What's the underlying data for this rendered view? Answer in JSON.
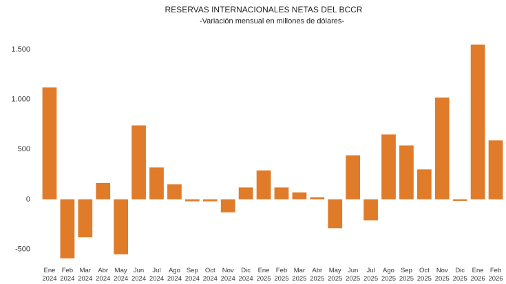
{
  "chart_data": {
    "type": "bar",
    "title": "RESERVAS INTERNACIONALES NETAS DEL BCCR",
    "subtitle": "-Variación mensual en millones de dólares-",
    "categories": [
      "Ene 2024",
      "Feb 2024",
      "Mar 2024",
      "Abr 2024",
      "May 2024",
      "Jun 2024",
      "Jul 2024",
      "Ago 2024",
      "Sep 2024",
      "Oct 2024",
      "Nov 2024",
      "Dic 2024",
      "Ene 2025",
      "Feb 2025",
      "Mar 2025",
      "Abr 2025",
      "May 2025",
      "Jun 2025",
      "Jul 2025",
      "Ago 2025",
      "Sep 2025",
      "Oct 2025",
      "Nov 2025",
      "Dic 2025",
      "Ene 2026",
      "Feb 2026"
    ],
    "values": [
      1120,
      -590,
      -380,
      165,
      -550,
      740,
      320,
      150,
      -20,
      -20,
      -130,
      120,
      290,
      120,
      70,
      20,
      -290,
      440,
      -210,
      650,
      540,
      300,
      1020,
      -15,
      1550,
      590
    ],
    "color": "#e07b2a",
    "ylim": [
      -620,
      1620
    ],
    "yticks": [
      -500,
      0,
      500,
      {
        "value": 1000,
        "label": "1.000"
      },
      {
        "value": 1500,
        "label": "1.500"
      }
    ],
    "grid": false
  }
}
